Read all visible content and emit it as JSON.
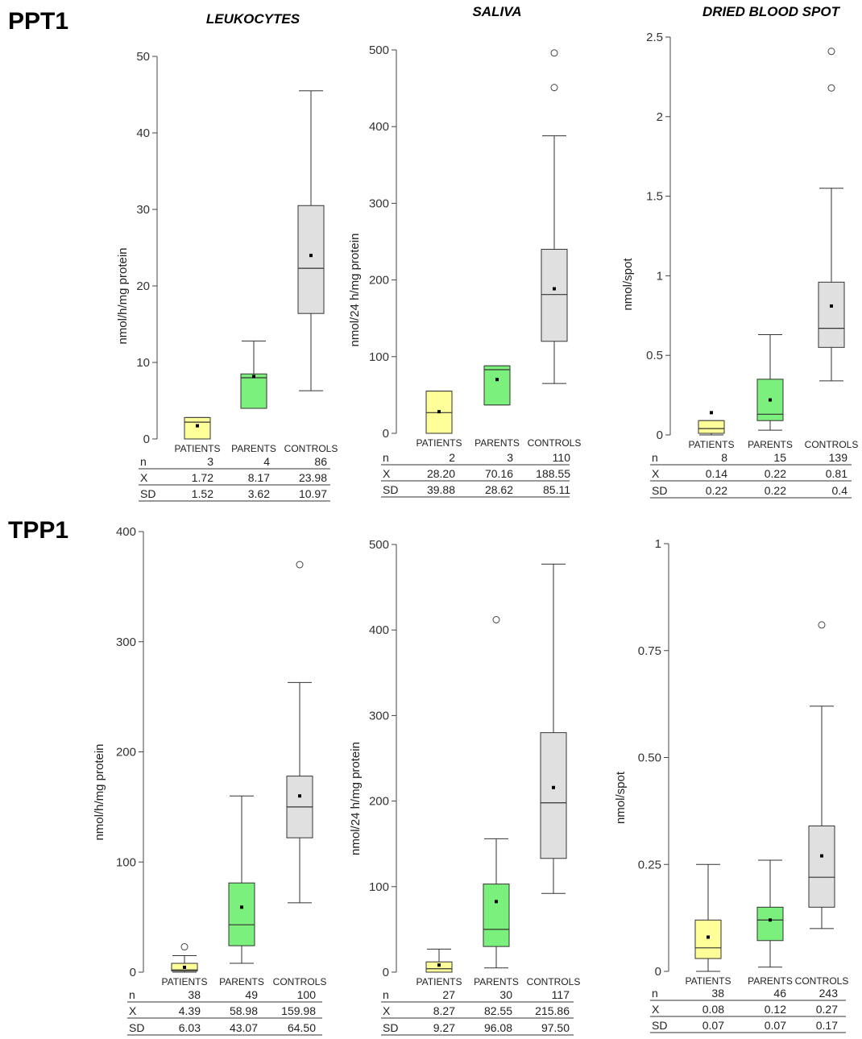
{
  "row_labels": [
    "PPT1",
    "TPP1"
  ],
  "colors": {
    "PATIENTS": "#ffff99",
    "PARENTS": "#7cf07c",
    "CONTROLS": "#e0e0e0",
    "stroke": "#333333"
  },
  "chart_data": [
    {
      "type": "box",
      "title": "LEUKOCYTES",
      "ylabel": "nmol/h/mg protein",
      "ylim": [
        0,
        50
      ],
      "yticks": [
        "0",
        "10",
        "20",
        "30",
        "40",
        "50"
      ],
      "yticks_values": [
        0,
        10,
        20,
        30,
        40,
        50
      ],
      "categories": [
        "PATIENTS",
        "PARENTS",
        "CONTROLS"
      ],
      "boxes": [
        {
          "whislo": 0,
          "q1": 0,
          "med": 2.2,
          "q3": 2.8,
          "whishi": 2.8,
          "mean": 1.72,
          "fliers": []
        },
        {
          "whislo": 4,
          "q1": 4,
          "med": 8.0,
          "q3": 8.5,
          "whishi": 12.8,
          "mean": 8.17,
          "fliers": []
        },
        {
          "whislo": 6.3,
          "q1": 16.4,
          "med": 22.3,
          "q3": 30.5,
          "whishi": 45.5,
          "mean": 23.98,
          "fliers": []
        }
      ],
      "stats": {
        "labels": [
          "n",
          "X",
          "SD"
        ],
        "rows": [
          [
            "3",
            "4",
            "86"
          ],
          [
            "1.72",
            "8.17",
            "23.98"
          ],
          [
            "1.52",
            "3.62",
            "10.97"
          ]
        ]
      }
    },
    {
      "type": "box",
      "title": "SALIVA",
      "ylabel": "nmol/24 h/mg protein",
      "ylim": [
        0,
        500
      ],
      "yticks": [
        "0",
        "100",
        "200",
        "300",
        "400",
        "500"
      ],
      "yticks_values": [
        0,
        100,
        200,
        300,
        400,
        500
      ],
      "categories": [
        "PATIENTS",
        "PARENTS",
        "CONTROLS"
      ],
      "boxes": [
        {
          "whislo": 0,
          "q1": 0,
          "med": 27,
          "q3": 55,
          "whishi": 55,
          "mean": 28.2,
          "fliers": []
        },
        {
          "whislo": 37,
          "q1": 37,
          "med": 83,
          "q3": 88,
          "whishi": 88,
          "mean": 70.16,
          "fliers": []
        },
        {
          "whislo": 65,
          "q1": 120,
          "med": 181,
          "q3": 240,
          "whishi": 388,
          "mean": 188.55,
          "fliers": [
            451,
            496
          ]
        }
      ],
      "stats": {
        "labels": [
          "n",
          "X",
          "SD"
        ],
        "rows": [
          [
            "2",
            "3",
            "110"
          ],
          [
            "28.20",
            "70.16",
            "188.55"
          ],
          [
            "39.88",
            "28.62",
            "85.11"
          ]
        ]
      }
    },
    {
      "type": "box",
      "title": "DRIED BLOOD SPOT",
      "ylabel": "nmol/spot",
      "ylim": [
        0,
        2.5
      ],
      "yticks": [
        "0",
        "0.5",
        "1",
        "1.5",
        "2",
        "2.5"
      ],
      "yticks_values": [
        0,
        0.5,
        1,
        1.5,
        2,
        2.5
      ],
      "categories": [
        "PATIENTS",
        "PARENTS",
        "CONTROLS"
      ],
      "boxes": [
        {
          "whislo": 0,
          "q1": 0.01,
          "med": 0.04,
          "q3": 0.09,
          "whishi": 0.09,
          "mean": 0.14,
          "fliers": []
        },
        {
          "whislo": 0.03,
          "q1": 0.09,
          "med": 0.13,
          "q3": 0.35,
          "whishi": 0.63,
          "mean": 0.22,
          "fliers": []
        },
        {
          "whislo": 0.34,
          "q1": 0.55,
          "med": 0.67,
          "q3": 0.96,
          "whishi": 1.55,
          "mean": 0.81,
          "fliers": [
            2.18,
            2.41
          ]
        }
      ],
      "stats": {
        "labels": [
          "n",
          "X",
          "SD"
        ],
        "rows": [
          [
            "8",
            "15",
            "139"
          ],
          [
            "0.14",
            "0.22",
            "0.81"
          ],
          [
            "0.22",
            "0.22",
            "0.4"
          ]
        ]
      }
    },
    {
      "type": "box",
      "title": "",
      "ylabel": "nmol/h/mg protein",
      "ylim": [
        0,
        400
      ],
      "yticks": [
        "0",
        "100",
        "200",
        "300",
        "400"
      ],
      "yticks_values": [
        0,
        100,
        200,
        300,
        400
      ],
      "categories": [
        "PATIENTS",
        "PARENTS",
        "CONTROLS"
      ],
      "boxes": [
        {
          "whislo": 0,
          "q1": 1,
          "med": 2,
          "q3": 8,
          "whishi": 15,
          "mean": 4.39,
          "fliers": [
            23
          ]
        },
        {
          "whislo": 8,
          "q1": 24,
          "med": 43,
          "q3": 81,
          "whishi": 160,
          "mean": 58.98,
          "fliers": []
        },
        {
          "whislo": 63,
          "q1": 122,
          "med": 150,
          "q3": 178,
          "whishi": 263,
          "mean": 159.98,
          "fliers": [
            370
          ]
        }
      ],
      "stats": {
        "labels": [
          "n",
          "X",
          "SD"
        ],
        "rows": [
          [
            "38",
            "49",
            "100"
          ],
          [
            "4.39",
            "58.98",
            "159.98"
          ],
          [
            "6.03",
            "43.07",
            "64.50"
          ]
        ]
      }
    },
    {
      "type": "box",
      "title": "",
      "ylabel": "nmol/24 h/mg protein",
      "ylim": [
        0,
        500
      ],
      "yticks": [
        "0",
        "100",
        "200",
        "300",
        "400",
        "500"
      ],
      "yticks_values": [
        0,
        100,
        200,
        300,
        400,
        500
      ],
      "categories": [
        "PATIENTS",
        "PARENTS",
        "CONTROLS"
      ],
      "boxes": [
        {
          "whislo": 0,
          "q1": 0,
          "med": 4,
          "q3": 12,
          "whishi": 27,
          "mean": 8.27,
          "fliers": []
        },
        {
          "whislo": 5,
          "q1": 30,
          "med": 50,
          "q3": 103,
          "whishi": 156,
          "mean": 82.55,
          "fliers": [
            412
          ]
        },
        {
          "whislo": 92,
          "q1": 133,
          "med": 198,
          "q3": 280,
          "whishi": 477,
          "mean": 215.86,
          "fliers": []
        }
      ],
      "stats": {
        "labels": [
          "n",
          "X",
          "SD"
        ],
        "rows": [
          [
            "27",
            "30",
            "117"
          ],
          [
            "8.27",
            "82.55",
            "215.86"
          ],
          [
            "9.27",
            "96.08",
            "97.50"
          ]
        ]
      }
    },
    {
      "type": "box",
      "title": "",
      "ylabel": "nmol/spot",
      "ylim": [
        0,
        1
      ],
      "yticks": [
        "0",
        "0.25",
        "0.50",
        "0.75",
        "1"
      ],
      "yticks_values": [
        0,
        0.25,
        0.5,
        0.75,
        1
      ],
      "categories": [
        "PATIENTS",
        "PARENTS",
        "CONTROLS"
      ],
      "boxes": [
        {
          "whislo": 0,
          "q1": 0.03,
          "med": 0.055,
          "q3": 0.12,
          "whishi": 0.25,
          "mean": 0.08,
          "fliers": []
        },
        {
          "whislo": 0.01,
          "q1": 0.072,
          "med": 0.12,
          "q3": 0.15,
          "whishi": 0.26,
          "mean": 0.12,
          "fliers": []
        },
        {
          "whislo": 0.1,
          "q1": 0.15,
          "med": 0.22,
          "q3": 0.34,
          "whishi": 0.62,
          "mean": 0.27,
          "fliers": [
            0.81
          ]
        }
      ],
      "stats": {
        "labels": [
          "n",
          "X",
          "SD"
        ],
        "rows": [
          [
            "38",
            "46",
            "243"
          ],
          [
            "0.08",
            "0.12",
            "0.27"
          ],
          [
            "0.07",
            "0.07",
            "0.17"
          ]
        ]
      }
    }
  ]
}
